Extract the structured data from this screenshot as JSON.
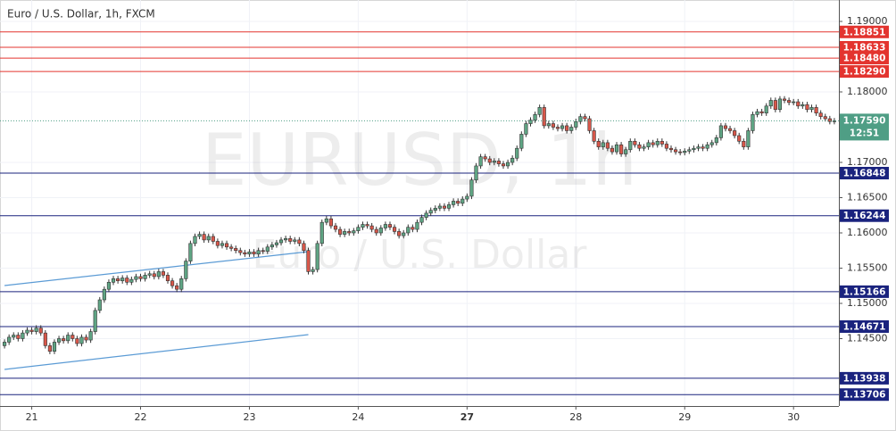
{
  "chart_data": {
    "type": "candlestick",
    "title": "Euro / U.S. Dollar, 1h, FXCM",
    "watermark": "EURUSD, 1h",
    "watermark_subtitle": "Euro / U.S. Dollar",
    "up_color": "#5fa584",
    "down_color": "#d9574a",
    "grid": true,
    "xlim": [
      -1,
      184
    ],
    "ylim": [
      1.13544,
      1.19304
    ],
    "xticks": [
      {
        "value": 6,
        "label": "21"
      },
      {
        "value": 30,
        "label": "22"
      },
      {
        "value": 54,
        "label": "23"
      },
      {
        "value": 78,
        "label": "24"
      },
      {
        "value": 102,
        "label": "27"
      },
      {
        "value": 126,
        "label": "28"
      },
      {
        "value": 150,
        "label": "29"
      },
      {
        "value": 174,
        "label": "30"
      }
    ],
    "yticks": [
      {
        "value": 1.19,
        "label": "1.19000"
      },
      {
        "value": 1.18,
        "label": "1.18000"
      },
      {
        "value": 1.17,
        "label": "1.17000"
      },
      {
        "value": 1.165,
        "label": "1.16500"
      },
      {
        "value": 1.16,
        "label": "1.16000"
      },
      {
        "value": 1.155,
        "label": "1.15500"
      },
      {
        "value": 1.15,
        "label": "1.15000"
      },
      {
        "value": 1.145,
        "label": "1.14500"
      }
    ],
    "levels": [
      {
        "value": 1.18851,
        "label": "1.18851",
        "color": "#e3342f"
      },
      {
        "value": 1.18633,
        "label": "1.18633",
        "color": "#e3342f"
      },
      {
        "value": 1.1848,
        "label": "1.18480",
        "color": "#e3342f"
      },
      {
        "value": 1.1829,
        "label": "1.18290",
        "color": "#e3342f"
      },
      {
        "value": 1.16848,
        "label": "1.16848",
        "color": "#1a237e"
      },
      {
        "value": 1.16244,
        "label": "1.16244",
        "color": "#1a237e"
      },
      {
        "value": 1.15166,
        "label": "1.15166",
        "color": "#1a237e"
      },
      {
        "value": 1.14671,
        "label": "1.14671",
        "color": "#1a237e"
      },
      {
        "value": 1.13938,
        "label": "1.13938",
        "color": "#1a237e"
      },
      {
        "value": 1.13706,
        "label": "1.13706",
        "color": "#1a237e"
      }
    ],
    "current_price": {
      "value": 1.1759,
      "label": "1.17590",
      "countdown": "12:51",
      "color": "#4f9e85"
    },
    "trend_lines": [
      {
        "x": [
          0,
          67
        ],
        "y": [
          1.15253,
          1.15734
        ],
        "color": "#5b9bd5"
      },
      {
        "x": [
          0,
          67
        ],
        "y": [
          1.14063,
          1.14557
        ],
        "color": "#5b9bd5"
      }
    ],
    "candles": [
      [
        1.144,
        1.1449,
        1.1436,
        1.1445
      ],
      [
        1.1445,
        1.1456,
        1.1441,
        1.1452
      ],
      [
        1.1452,
        1.1459,
        1.1448,
        1.1455
      ],
      [
        1.1455,
        1.1459,
        1.1446,
        1.145
      ],
      [
        1.145,
        1.1462,
        1.1446,
        1.1458
      ],
      [
        1.1458,
        1.1466,
        1.1454,
        1.1462
      ],
      [
        1.1462,
        1.1466,
        1.1456,
        1.146
      ],
      [
        1.146,
        1.1469,
        1.1456,
        1.1465
      ],
      [
        1.1465,
        1.1469,
        1.1454,
        1.1458
      ],
      [
        1.1458,
        1.1462,
        1.1436,
        1.144
      ],
      [
        1.144,
        1.1444,
        1.1428,
        1.1432
      ],
      [
        1.1432,
        1.1449,
        1.1428,
        1.1445
      ],
      [
        1.1445,
        1.1454,
        1.1441,
        1.145
      ],
      [
        1.145,
        1.1454,
        1.1443,
        1.1447
      ],
      [
        1.1447,
        1.1459,
        1.1443,
        1.1455
      ],
      [
        1.1455,
        1.1459,
        1.1446,
        1.145
      ],
      [
        1.145,
        1.1454,
        1.1439,
        1.1443
      ],
      [
        1.1443,
        1.1456,
        1.1439,
        1.1452
      ],
      [
        1.1452,
        1.1456,
        1.1444,
        1.1448
      ],
      [
        1.1448,
        1.1464,
        1.1444,
        1.146
      ],
      [
        1.146,
        1.1494,
        1.1456,
        1.149
      ],
      [
        1.149,
        1.1509,
        1.1486,
        1.1505
      ],
      [
        1.1505,
        1.1524,
        1.1501,
        1.152
      ],
      [
        1.152,
        1.1534,
        1.1516,
        1.153
      ],
      [
        1.153,
        1.1539,
        1.1526,
        1.1535
      ],
      [
        1.1535,
        1.1539,
        1.1528,
        1.1532
      ],
      [
        1.1532,
        1.154,
        1.1528,
        1.1536
      ],
      [
        1.1536,
        1.154,
        1.1526,
        1.153
      ],
      [
        1.153,
        1.1538,
        1.1526,
        1.1534
      ],
      [
        1.1534,
        1.1542,
        1.153,
        1.1538
      ],
      [
        1.1538,
        1.1542,
        1.1531,
        1.1535
      ],
      [
        1.1535,
        1.1544,
        1.1531,
        1.154
      ],
      [
        1.154,
        1.1546,
        1.1536,
        1.1542
      ],
      [
        1.1542,
        1.1546,
        1.1534,
        1.1538
      ],
      [
        1.1538,
        1.1549,
        1.1534,
        1.1545
      ],
      [
        1.1545,
        1.1549,
        1.1536,
        1.154
      ],
      [
        1.154,
        1.1544,
        1.1528,
        1.1532
      ],
      [
        1.1532,
        1.1536,
        1.1521,
        1.1525
      ],
      [
        1.1525,
        1.1529,
        1.1516,
        1.152
      ],
      [
        1.152,
        1.1539,
        1.1516,
        1.1535
      ],
      [
        1.1535,
        1.1564,
        1.1531,
        1.156
      ],
      [
        1.156,
        1.1589,
        1.1556,
        1.1585
      ],
      [
        1.1585,
        1.1599,
        1.1581,
        1.1595
      ],
      [
        1.1595,
        1.1602,
        1.1591,
        1.1598
      ],
      [
        1.1598,
        1.1602,
        1.1586,
        1.159
      ],
      [
        1.159,
        1.1599,
        1.1586,
        1.1595
      ],
      [
        1.1595,
        1.1599,
        1.1584,
        1.1588
      ],
      [
        1.1588,
        1.1592,
        1.1578,
        1.1582
      ],
      [
        1.1582,
        1.1589,
        1.1578,
        1.1585
      ],
      [
        1.1585,
        1.1589,
        1.1576,
        1.158
      ],
      [
        1.158,
        1.1584,
        1.1574,
        1.1578
      ],
      [
        1.1578,
        1.1582,
        1.1571,
        1.1575
      ],
      [
        1.1575,
        1.1579,
        1.1568,
        1.1572
      ],
      [
        1.1572,
        1.1576,
        1.1566,
        1.157
      ],
      [
        1.157,
        1.1577,
        1.1566,
        1.1573
      ],
      [
        1.1573,
        1.1577,
        1.1566,
        1.157
      ],
      [
        1.157,
        1.1579,
        1.1566,
        1.1575
      ],
      [
        1.1575,
        1.1579,
        1.157,
        1.1574
      ],
      [
        1.1574,
        1.1584,
        1.157,
        1.158
      ],
      [
        1.158,
        1.1587,
        1.1576,
        1.1583
      ],
      [
        1.1583,
        1.159,
        1.1579,
        1.1586
      ],
      [
        1.1586,
        1.1594,
        1.1582,
        1.159
      ],
      [
        1.159,
        1.1596,
        1.1586,
        1.1592
      ],
      [
        1.1592,
        1.1596,
        1.1584,
        1.1588
      ],
      [
        1.1588,
        1.1594,
        1.1584,
        1.159
      ],
      [
        1.159,
        1.1594,
        1.1581,
        1.1585
      ],
      [
        1.1585,
        1.1589,
        1.1571,
        1.1575
      ],
      [
        1.1575,
        1.1579,
        1.1541,
        1.1545
      ],
      [
        1.1545,
        1.1552,
        1.1541,
        1.1548
      ],
      [
        1.1548,
        1.1589,
        1.1544,
        1.1585
      ],
      [
        1.1585,
        1.1619,
        1.1581,
        1.1615
      ],
      [
        1.1615,
        1.1624,
        1.1611,
        1.162
      ],
      [
        1.162,
        1.1624,
        1.1606,
        1.161
      ],
      [
        1.161,
        1.1614,
        1.1601,
        1.1605
      ],
      [
        1.1605,
        1.1609,
        1.1594,
        1.1598
      ],
      [
        1.1598,
        1.1606,
        1.1594,
        1.1602
      ],
      [
        1.1602,
        1.1606,
        1.1596,
        1.16
      ],
      [
        1.16,
        1.1607,
        1.1596,
        1.1603
      ],
      [
        1.1603,
        1.1612,
        1.1599,
        1.1608
      ],
      [
        1.1608,
        1.1616,
        1.1604,
        1.1612
      ],
      [
        1.1612,
        1.1616,
        1.1606,
        1.161
      ],
      [
        1.161,
        1.1614,
        1.1601,
        1.1605
      ],
      [
        1.1605,
        1.1609,
        1.1596,
        1.16
      ],
      [
        1.16,
        1.1611,
        1.1596,
        1.1607
      ],
      [
        1.1607,
        1.1616,
        1.1603,
        1.1612
      ],
      [
        1.1612,
        1.1616,
        1.1604,
        1.1608
      ],
      [
        1.1608,
        1.1612,
        1.1598,
        1.1602
      ],
      [
        1.1602,
        1.1606,
        1.1592,
        1.1596
      ],
      [
        1.1596,
        1.1604,
        1.1592,
        1.16
      ],
      [
        1.16,
        1.1612,
        1.1596,
        1.1608
      ],
      [
        1.1608,
        1.1612,
        1.1601,
        1.1605
      ],
      [
        1.1605,
        1.1619,
        1.1601,
        1.1615
      ],
      [
        1.1615,
        1.1626,
        1.1611,
        1.1622
      ],
      [
        1.1622,
        1.1632,
        1.1618,
        1.1628
      ],
      [
        1.1628,
        1.1636,
        1.1624,
        1.1632
      ],
      [
        1.1632,
        1.1639,
        1.1628,
        1.1635
      ],
      [
        1.1635,
        1.1642,
        1.1631,
        1.1638
      ],
      [
        1.1638,
        1.1642,
        1.1631,
        1.1635
      ],
      [
        1.1635,
        1.1644,
        1.1631,
        1.164
      ],
      [
        1.164,
        1.1649,
        1.1636,
        1.1645
      ],
      [
        1.1645,
        1.1649,
        1.1638,
        1.1642
      ],
      [
        1.1642,
        1.1652,
        1.1638,
        1.1648
      ],
      [
        1.1648,
        1.1656,
        1.1644,
        1.1652
      ],
      [
        1.1652,
        1.1679,
        1.1648,
        1.1675
      ],
      [
        1.1675,
        1.1699,
        1.1671,
        1.1695
      ],
      [
        1.1695,
        1.1712,
        1.1691,
        1.1708
      ],
      [
        1.1708,
        1.1712,
        1.1701,
        1.1705
      ],
      [
        1.1705,
        1.1709,
        1.1696,
        1.17
      ],
      [
        1.17,
        1.1706,
        1.1696,
        1.1702
      ],
      [
        1.1702,
        1.1706,
        1.1694,
        1.1698
      ],
      [
        1.1698,
        1.1702,
        1.1691,
        1.1695
      ],
      [
        1.1695,
        1.1704,
        1.1691,
        1.17
      ],
      [
        1.17,
        1.171,
        1.1696,
        1.1706
      ],
      [
        1.1706,
        1.1724,
        1.1702,
        1.172
      ],
      [
        1.172,
        1.1744,
        1.1716,
        1.174
      ],
      [
        1.174,
        1.1759,
        1.1736,
        1.1755
      ],
      [
        1.1755,
        1.1764,
        1.1751,
        1.176
      ],
      [
        1.176,
        1.1772,
        1.1756,
        1.1768
      ],
      [
        1.1768,
        1.1782,
        1.1764,
        1.1778
      ],
      [
        1.1778,
        1.1782,
        1.1748,
        1.1752
      ],
      [
        1.1752,
        1.1759,
        1.1748,
        1.1755
      ],
      [
        1.1755,
        1.1759,
        1.1746,
        1.175
      ],
      [
        1.175,
        1.1754,
        1.1744,
        1.1748
      ],
      [
        1.1748,
        1.1756,
        1.1744,
        1.1752
      ],
      [
        1.1752,
        1.1756,
        1.1741,
        1.1745
      ],
      [
        1.1745,
        1.1754,
        1.1741,
        1.175
      ],
      [
        1.175,
        1.1762,
        1.1746,
        1.1758
      ],
      [
        1.1758,
        1.1769,
        1.1754,
        1.1765
      ],
      [
        1.1765,
        1.1769,
        1.1758,
        1.1762
      ],
      [
        1.1762,
        1.1766,
        1.1741,
        1.1745
      ],
      [
        1.1745,
        1.1749,
        1.1726,
        1.173
      ],
      [
        1.173,
        1.1734,
        1.1718,
        1.1722
      ],
      [
        1.1722,
        1.1732,
        1.1718,
        1.1728
      ],
      [
        1.1728,
        1.1732,
        1.1716,
        1.172
      ],
      [
        1.172,
        1.1724,
        1.1711,
        1.1715
      ],
      [
        1.1715,
        1.1729,
        1.1711,
        1.1725
      ],
      [
        1.1725,
        1.1729,
        1.1708,
        1.1712
      ],
      [
        1.1712,
        1.1722,
        1.1708,
        1.1718
      ],
      [
        1.1718,
        1.1734,
        1.1714,
        1.173
      ],
      [
        1.173,
        1.1734,
        1.1721,
        1.1725
      ],
      [
        1.1725,
        1.1729,
        1.1716,
        1.172
      ],
      [
        1.172,
        1.1726,
        1.1716,
        1.1722
      ],
      [
        1.1722,
        1.1732,
        1.1718,
        1.1728
      ],
      [
        1.1728,
        1.1732,
        1.1721,
        1.1725
      ],
      [
        1.1725,
        1.1734,
        1.1721,
        1.173
      ],
      [
        1.173,
        1.1734,
        1.1722,
        1.1726
      ],
      [
        1.1726,
        1.173,
        1.1716,
        1.172
      ],
      [
        1.172,
        1.1724,
        1.1714,
        1.1718
      ],
      [
        1.1718,
        1.1722,
        1.1711,
        1.1715
      ],
      [
        1.1715,
        1.1719,
        1.171,
        1.1714
      ],
      [
        1.1714,
        1.172,
        1.171,
        1.1716
      ],
      [
        1.1716,
        1.1722,
        1.1712,
        1.1718
      ],
      [
        1.1718,
        1.1724,
        1.1714,
        1.172
      ],
      [
        1.172,
        1.1726,
        1.1716,
        1.1722
      ],
      [
        1.1722,
        1.1726,
        1.1716,
        1.172
      ],
      [
        1.172,
        1.1729,
        1.1716,
        1.1725
      ],
      [
        1.1725,
        1.1732,
        1.1721,
        1.1728
      ],
      [
        1.1728,
        1.1739,
        1.1724,
        1.1735
      ],
      [
        1.1735,
        1.1756,
        1.1731,
        1.1752
      ],
      [
        1.1752,
        1.1756,
        1.1744,
        1.1748
      ],
      [
        1.1748,
        1.1752,
        1.1741,
        1.1745
      ],
      [
        1.1745,
        1.1749,
        1.1734,
        1.1738
      ],
      [
        1.1738,
        1.1742,
        1.1726,
        1.173
      ],
      [
        1.173,
        1.1734,
        1.1718,
        1.1722
      ],
      [
        1.1722,
        1.1749,
        1.1718,
        1.1745
      ],
      [
        1.1745,
        1.1772,
        1.1741,
        1.1768
      ],
      [
        1.1768,
        1.1776,
        1.1764,
        1.1772
      ],
      [
        1.1772,
        1.1776,
        1.1766,
        1.177
      ],
      [
        1.177,
        1.1784,
        1.1766,
        1.178
      ],
      [
        1.178,
        1.1792,
        1.1776,
        1.1788
      ],
      [
        1.1788,
        1.1792,
        1.1771,
        1.1775
      ],
      [
        1.1775,
        1.1794,
        1.1771,
        1.179
      ],
      [
        1.179,
        1.1794,
        1.1784,
        1.1788
      ],
      [
        1.1788,
        1.1792,
        1.1781,
        1.1785
      ],
      [
        1.1785,
        1.179,
        1.1781,
        1.1786
      ],
      [
        1.1786,
        1.179,
        1.1776,
        1.178
      ],
      [
        1.178,
        1.1786,
        1.1776,
        1.1782
      ],
      [
        1.1782,
        1.1786,
        1.1771,
        1.1775
      ],
      [
        1.1775,
        1.1782,
        1.1771,
        1.1778
      ],
      [
        1.1778,
        1.1782,
        1.1766,
        1.177
      ],
      [
        1.177,
        1.1774,
        1.1761,
        1.1765
      ],
      [
        1.1765,
        1.1769,
        1.1758,
        1.1762
      ],
      [
        1.1762,
        1.1766,
        1.1754,
        1.1758
      ],
      [
        1.1758,
        1.1763,
        1.1754,
        1.1759
      ]
    ]
  }
}
